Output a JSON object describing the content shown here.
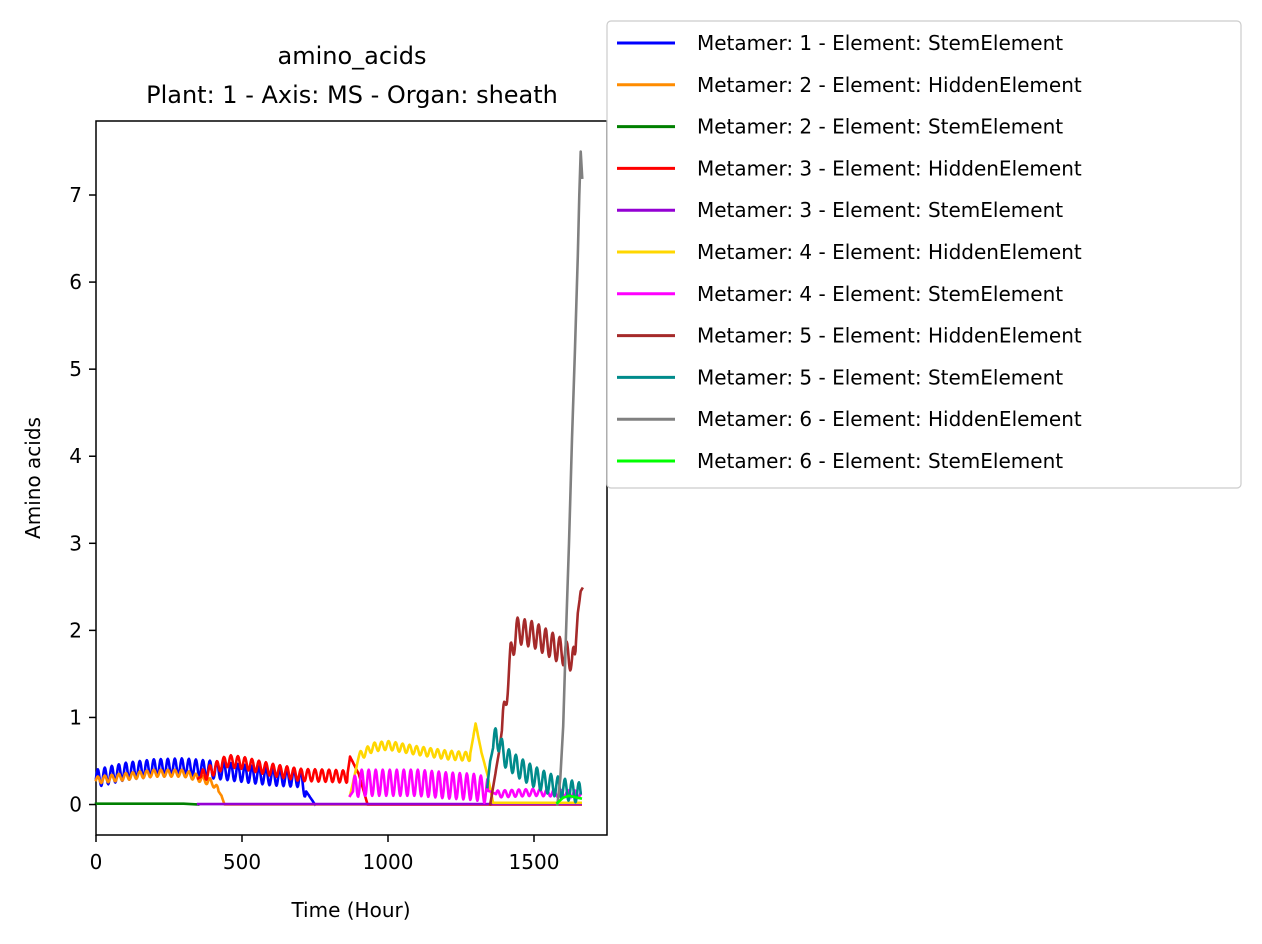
{
  "chart_data": {
    "type": "line",
    "title": "amino_acids",
    "subtitle": "Plant: 1 - Axis: MS - Organ: sheath",
    "xlabel": "Time (Hour)",
    "ylabel": "Amino acids",
    "xlim": [
      0,
      1750
    ],
    "ylim": [
      -0.35,
      7.85
    ],
    "xticks": [
      0,
      500,
      1000,
      1500
    ],
    "yticks": [
      0,
      1,
      2,
      3,
      4,
      5,
      6,
      7
    ],
    "grid": false,
    "legend_position": "upper-right (outside axes)",
    "series": [
      {
        "name": "Metamer: 1 - Element: StemElement",
        "color": "#0000ff",
        "x": [
          0,
          100,
          200,
          300,
          400,
          500,
          600,
          700,
          720,
          750
        ],
        "y": [
          0.3,
          0.38,
          0.42,
          0.43,
          0.4,
          0.36,
          0.32,
          0.3,
          0.15,
          0.0
        ],
        "osc": [
          [
            0,
            720,
            0.1,
            24
          ]
        ]
      },
      {
        "name": "Metamer: 2 - Element: HiddenElement",
        "color": "#ff8c00",
        "x": [
          0,
          100,
          200,
          300,
          400,
          430,
          440,
          1660
        ],
        "y": [
          0.28,
          0.32,
          0.36,
          0.36,
          0.25,
          0.1,
          0.0,
          0.0
        ],
        "osc": [
          [
            0,
            420,
            0.04,
            24
          ]
        ]
      },
      {
        "name": "Metamer: 2 - Element: StemElement",
        "color": "#008000",
        "x": [
          0,
          300,
          350
        ],
        "y": [
          0.01,
          0.01,
          0.0
        ]
      },
      {
        "name": "Metamer: 3 - Element: HiddenElement",
        "color": "#ff0000",
        "x": [
          350,
          400,
          450,
          500,
          600,
          700,
          800,
          860,
          870,
          900,
          930,
          1660
        ],
        "y": [
          0.3,
          0.4,
          0.5,
          0.48,
          0.4,
          0.34,
          0.33,
          0.32,
          0.55,
          0.35,
          0.0,
          0.0
        ],
        "osc": [
          [
            360,
            860,
            0.07,
            24
          ]
        ]
      },
      {
        "name": "Metamer: 3 - Element: StemElement",
        "color": "#9400d3",
        "x": [
          350,
          1660
        ],
        "y": [
          0.005,
          0.005
        ]
      },
      {
        "name": "Metamer: 4 - Element: HiddenElement",
        "color": "#ffd700",
        "x": [
          870,
          900,
          950,
          1000,
          1100,
          1200,
          1280,
          1300,
          1320,
          1340,
          1360,
          1660
        ],
        "y": [
          0.1,
          0.55,
          0.66,
          0.68,
          0.62,
          0.57,
          0.55,
          0.93,
          0.6,
          0.35,
          0.02,
          0.02
        ],
        "osc": [
          [
            900,
            1280,
            0.05,
            24
          ]
        ]
      },
      {
        "name": "Metamer: 4 - Element: StemElement",
        "color": "#ff00ff",
        "x": [
          870,
          900,
          1000,
          1100,
          1200,
          1300,
          1350,
          1370,
          1500,
          1660
        ],
        "y": [
          0.1,
          0.25,
          0.25,
          0.25,
          0.22,
          0.2,
          0.15,
          0.12,
          0.14,
          0.12
        ],
        "osc": [
          [
            880,
            1340,
            0.15,
            24
          ],
          [
            1370,
            1660,
            0.04,
            24
          ]
        ]
      },
      {
        "name": "Metamer: 5 - Element: HiddenElement",
        "color": "#a52a2a",
        "x": [
          1350,
          1380,
          1400,
          1420,
          1440,
          1500,
          1550,
          1600,
          1640,
          1650,
          1660,
          1665
        ],
        "y": [
          0.0,
          0.6,
          1.1,
          1.7,
          2.0,
          1.95,
          1.85,
          1.75,
          1.65,
          2.2,
          2.45,
          2.48
        ],
        "osc": [
          [
            1390,
            1640,
            0.15,
            24
          ]
        ]
      },
      {
        "name": "Metamer: 5 - Element: StemElement",
        "color": "#008b8b",
        "x": [
          1340,
          1350,
          1370,
          1400,
          1450,
          1500,
          1550,
          1600,
          1660
        ],
        "y": [
          0.2,
          0.5,
          0.8,
          0.55,
          0.42,
          0.32,
          0.24,
          0.18,
          0.13
        ],
        "osc": [
          [
            1360,
            1660,
            0.12,
            24
          ]
        ]
      },
      {
        "name": "Metamer: 6 - Element: HiddenElement",
        "color": "#808080",
        "x": [
          1580,
          1590,
          1600,
          1610,
          1620,
          1630,
          1640,
          1650,
          1655,
          1660,
          1665
        ],
        "y": [
          0.0,
          0.3,
          0.9,
          2.0,
          3.0,
          4.2,
          5.2,
          6.3,
          7.0,
          7.5,
          7.2
        ]
      },
      {
        "name": "Metamer: 6 - Element: StemElement",
        "color": "#00ff00",
        "x": [
          1580,
          1600,
          1620,
          1660
        ],
        "y": [
          0.02,
          0.08,
          0.1,
          0.07
        ]
      }
    ]
  }
}
